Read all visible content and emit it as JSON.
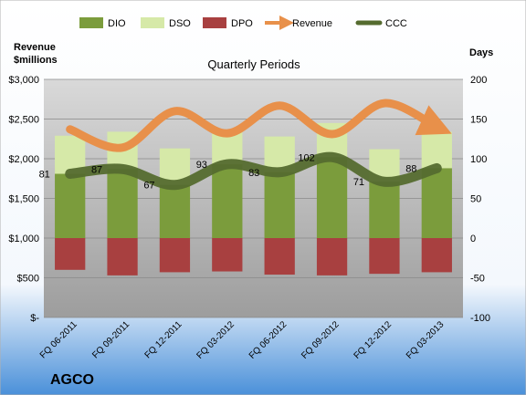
{
  "company": "AGCO",
  "chart_data": {
    "type": "bar",
    "title": "Quarterly Periods",
    "left_axis": {
      "label_line1": "Revenue",
      "label_line2": "$millions",
      "range": [
        0,
        3000
      ],
      "ticks": [
        "$-",
        "$500",
        "$1,000",
        "$1,500",
        "$2,000",
        "$2,500",
        "$3,000"
      ],
      "tick_values": [
        0,
        500,
        1000,
        1500,
        2000,
        2500,
        3000
      ]
    },
    "right_axis": {
      "label": "Days",
      "range": [
        -100,
        200
      ],
      "ticks": [
        "-100",
        "-50",
        "0",
        "50",
        "100",
        "150",
        "200"
      ],
      "tick_values": [
        -100,
        -50,
        0,
        50,
        100,
        150,
        200
      ]
    },
    "categories": [
      "FQ 06-2011",
      "FQ 09-2011",
      "FQ 12-2011",
      "FQ 03-2012",
      "FQ 06-2012",
      "FQ 09-2012",
      "FQ 12-2012",
      "FQ 03-2013"
    ],
    "series": [
      {
        "name": "DIO",
        "color": "#7b9c3c",
        "values": [
          81,
          87,
          67,
          93,
          83,
          102,
          71,
          88
        ]
      },
      {
        "name": "DSO",
        "color": "#d6e9a8",
        "values": [
          48,
          47,
          46,
          41,
          45,
          43,
          41,
          46
        ]
      },
      {
        "name": "DPO",
        "color": "#a84040",
        "values": [
          -40,
          -47,
          -43,
          -42,
          -46,
          -47,
          -45,
          -43
        ]
      },
      {
        "name": "Revenue",
        "color": "#e8904a",
        "values": [
          2370,
          2140,
          2600,
          2320,
          2670,
          2310,
          2700,
          2400
        ]
      },
      {
        "name": "CCC",
        "color": "#556b2f",
        "values": [
          81,
          87,
          67,
          93,
          83,
          102,
          71,
          88
        ]
      }
    ],
    "data_labels": [
      "81",
      "87",
      "67",
      "93",
      "83",
      "102",
      "71",
      "88"
    ],
    "legend_position": "top",
    "grid": true
  }
}
